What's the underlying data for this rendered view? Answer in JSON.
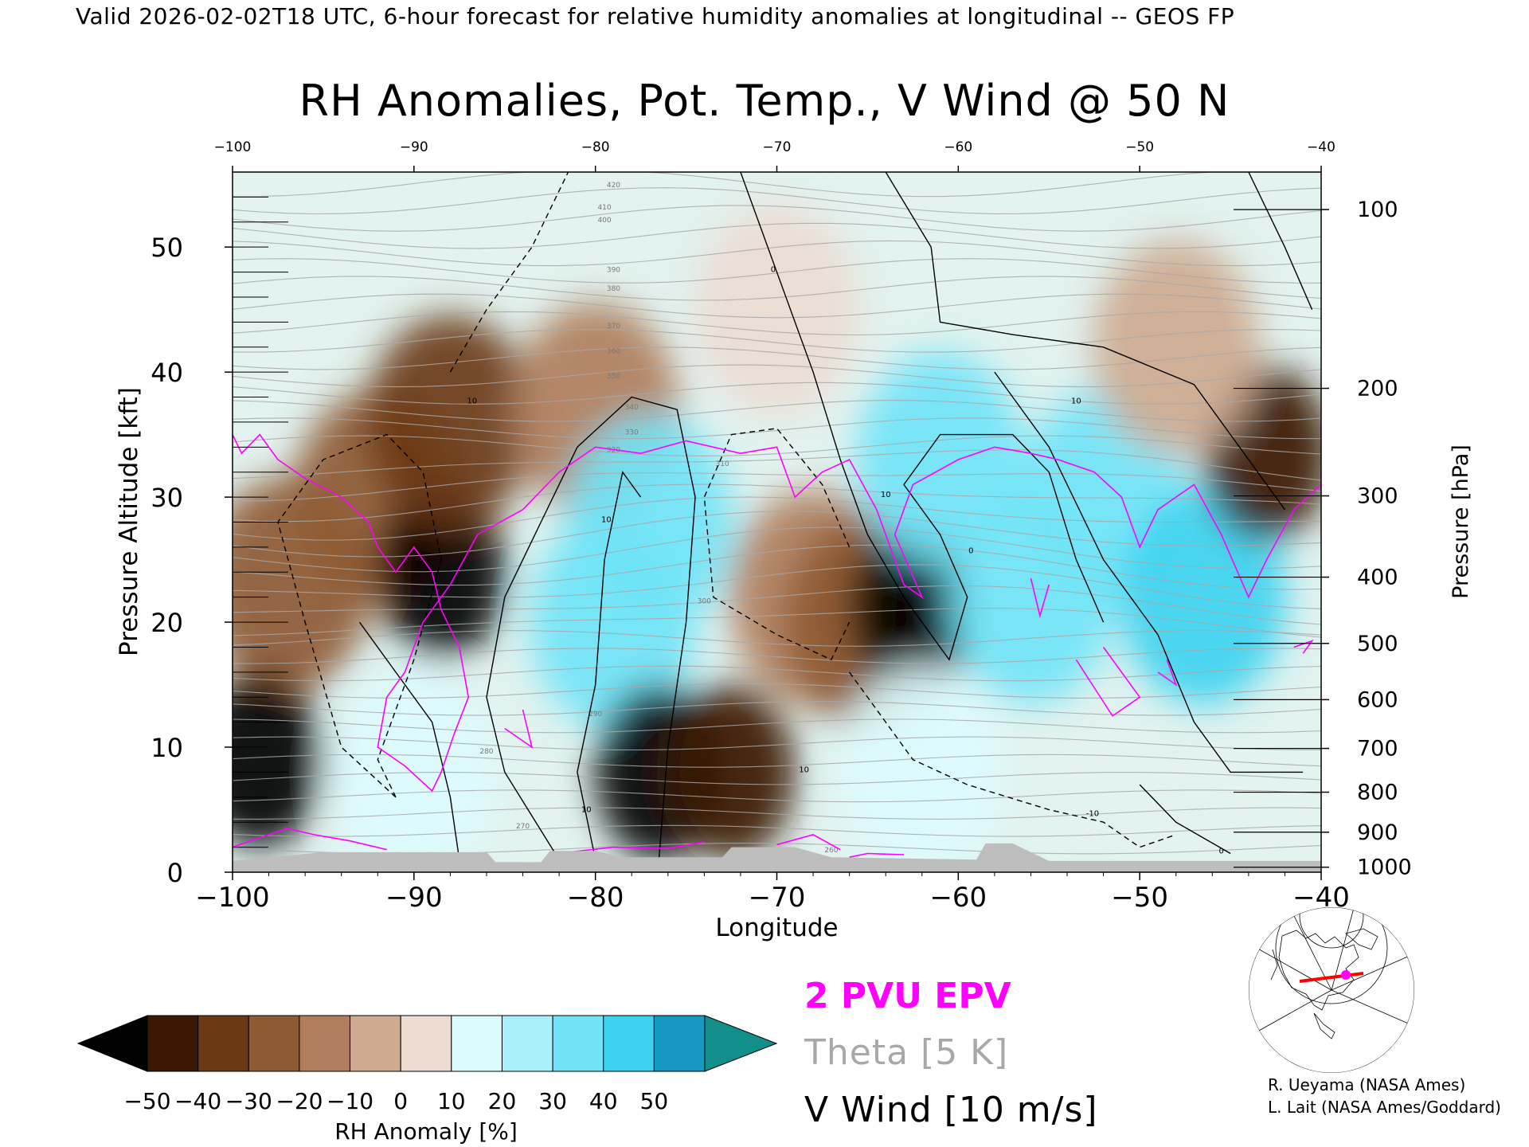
{
  "header": "Valid 2026-02-02T18 UTC, 6-hour forecast for relative humidity anomalies at longitudinal -- GEOS FP",
  "title": "RH Anomalies, Pot. Temp., V Wind @ 50 N",
  "legend": {
    "epv": "2 PVU EPV",
    "theta": "Theta [5 K]",
    "vwind": "V Wind [10 m/s]"
  },
  "credits": [
    "R. Ueyama (NASA Ames)",
    "L. Lait (NASA Ames/Goddard)"
  ],
  "colors": {
    "epv": "#ff00ff",
    "theta": "#a8a8a8",
    "vwind": "#000000",
    "terrain": "#bdbdbd",
    "map_track": "#ff0000",
    "map_marker": "#ff00ff"
  },
  "chart_data": {
    "type": "heatmap",
    "xlabel": "Longitude",
    "ylabel_left": "Pressure Altitude [kft]",
    "ylabel_right": "Pressure [hPa]",
    "xlim": [
      -100,
      -40
    ],
    "ylim": [
      0,
      56
    ],
    "x_ticks": [
      "-100",
      "-90",
      "-80",
      "-70",
      "-60",
      "-50",
      "-40"
    ],
    "x_tick_values": [
      -100,
      -90,
      -80,
      -70,
      -60,
      -50,
      -40
    ],
    "y_ticks": [
      "0",
      "10",
      "20",
      "30",
      "40",
      "50"
    ],
    "y_tick_values": [
      0,
      10,
      20,
      30,
      40,
      50
    ],
    "pressure_ticks": [
      {
        "label": "100",
        "kft": 53.0
      },
      {
        "label": "200",
        "kft": 38.7
      },
      {
        "label": "300",
        "kft": 30.1
      },
      {
        "label": "400",
        "kft": 23.6
      },
      {
        "label": "500",
        "kft": 18.3
      },
      {
        "label": "600",
        "kft": 13.8
      },
      {
        "label": "700",
        "kft": 9.9
      },
      {
        "label": "800",
        "kft": 6.4
      },
      {
        "label": "900",
        "kft": 3.2
      },
      {
        "label": "1000",
        "kft": 0.4
      }
    ],
    "colorbar": {
      "label": "RH Anomaly [%]",
      "ticks": [
        "-50",
        "-40",
        "-30",
        "-20",
        "-10",
        "0",
        "10",
        "20",
        "30",
        "40",
        "50"
      ],
      "bin_colors": [
        "#3b1804",
        "#6b3a15",
        "#8e5a34",
        "#b07e5c",
        "#ceaa90",
        "#ecdcd2",
        "#dcfbfd",
        "#a9f0fb",
        "#71e4f7",
        "#3cd2f0",
        "#1599c4"
      ],
      "under_color": "#000000",
      "over_color": "#128f8a"
    },
    "rh_anomaly_regions": [
      {
        "lon": -97,
        "kft": 23,
        "rh": -30
      },
      {
        "lon": -98.5,
        "kft": 9,
        "rh": -60
      },
      {
        "lon": -92,
        "kft": 30,
        "rh": -30
      },
      {
        "lon": -88.5,
        "kft": 24,
        "rh": -55
      },
      {
        "lon": -88,
        "kft": 36,
        "rh": -35
      },
      {
        "lon": -90,
        "kft": 8,
        "rh": 15
      },
      {
        "lon": -80,
        "kft": 37,
        "rh": -20
      },
      {
        "lon": -77,
        "kft": 28,
        "rh": 30
      },
      {
        "lon": -79,
        "kft": 20,
        "rh": 35
      },
      {
        "lon": -76.5,
        "kft": 8,
        "rh": -55
      },
      {
        "lon": -72.5,
        "kft": 8,
        "rh": -45
      },
      {
        "lon": -68,
        "kft": 22,
        "rh": -15
      },
      {
        "lon": -65,
        "kft": 20,
        "rh": -30
      },
      {
        "lon": -62.5,
        "kft": 21,
        "rh": -60
      },
      {
        "lon": -61,
        "kft": 33,
        "rh": 30
      },
      {
        "lon": -56,
        "kft": 22,
        "rh": 35
      },
      {
        "lon": -52,
        "kft": 30,
        "rh": 35
      },
      {
        "lon": -46.5,
        "kft": 22,
        "rh": 40
      },
      {
        "lon": -43,
        "kft": 33.5,
        "rh": -45
      },
      {
        "lon": -48,
        "kft": 42,
        "rh": -10
      },
      {
        "lon": -62,
        "kft": 8,
        "rh": 10
      },
      {
        "lon": -70,
        "kft": 45,
        "rh": 5
      }
    ],
    "theta_label_values": [
      "260",
      "270",
      "280",
      "290",
      "300",
      "310",
      "320",
      "330",
      "340",
      "350",
      "360",
      "370",
      "380",
      "390",
      "400",
      "410",
      "420"
    ],
    "vwind_labels": [
      "0",
      "10",
      "-10"
    ],
    "terrain_kft": [
      {
        "lon": -100,
        "kft": 0.9
      },
      {
        "lon": -95,
        "kft": 1.6
      },
      {
        "lon": -86,
        "kft": 1.6
      },
      {
        "lon": -85.5,
        "kft": 0.8
      },
      {
        "lon": -83,
        "kft": 0.8
      },
      {
        "lon": -82.5,
        "kft": 1.7
      },
      {
        "lon": -80,
        "kft": 1.7
      },
      {
        "lon": -78.5,
        "kft": 1.2
      },
      {
        "lon": -73,
        "kft": 1.2
      },
      {
        "lon": -72.5,
        "kft": 2.0
      },
      {
        "lon": -69,
        "kft": 2.0
      },
      {
        "lon": -67,
        "kft": 1.2
      },
      {
        "lon": -59,
        "kft": 1.0
      },
      {
        "lon": -58.5,
        "kft": 2.3
      },
      {
        "lon": -57,
        "kft": 2.3
      },
      {
        "lon": -56,
        "kft": 1.6
      },
      {
        "lon": -55,
        "kft": 0.9
      },
      {
        "lon": -40,
        "kft": 0.9
      }
    ]
  }
}
